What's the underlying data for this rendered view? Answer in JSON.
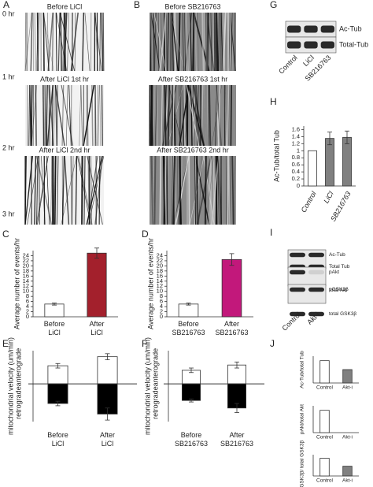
{
  "figure": {
    "kymographs": [
      {
        "panel": "A",
        "labels": [
          "Before LiCl",
          "After LiCl 1st hr",
          "After LiCl 2nd hr"
        ]
      },
      {
        "panel": "B",
        "labels": [
          "Before SB216763",
          "After SB216763 1st hr",
          "After SB216763 2nd hr"
        ]
      }
    ],
    "time_labels": [
      "0 hr",
      "1 hr",
      "2 hr",
      "3 hr"
    ],
    "blots": [
      {
        "panel": "G",
        "bands": [
          "Ac-Tub",
          "Total-Tub"
        ],
        "lanes": [
          "Control",
          "LiCl",
          "SB216763"
        ]
      },
      {
        "panel": "I",
        "bands": [
          "Ac-Tub",
          "Total Tub",
          "pAkt",
          "total Akt",
          "pGSK3β",
          "total GSK3β"
        ],
        "lanes": [
          "Control",
          "Akt-i"
        ]
      }
    ]
  },
  "chart_data": [
    {
      "type": "bar",
      "panel": "C",
      "ylabel": "Average number of events/hr",
      "categories": [
        [
          "Before",
          "LiCl"
        ],
        [
          "After",
          "LiCl"
        ]
      ],
      "values": [
        5,
        25
      ],
      "errors": [
        0.4,
        2
      ],
      "colors": [
        "#ffffff",
        "#a3202c"
      ],
      "ylim": [
        0,
        26
      ],
      "yticks": [
        0,
        2,
        4,
        6,
        8,
        10,
        12,
        14,
        16,
        18,
        20,
        22,
        24
      ]
    },
    {
      "type": "bar",
      "panel": "D",
      "ylabel": "Average number of events/hr",
      "categories": [
        [
          "Before",
          "SB216763"
        ],
        [
          "After",
          "SB216763"
        ]
      ],
      "values": [
        5,
        22.5
      ],
      "errors": [
        0.4,
        2.3
      ],
      "colors": [
        "#ffffff",
        "#c2187b"
      ],
      "ylim": [
        0,
        26
      ],
      "yticks": [
        0,
        2,
        4,
        6,
        8,
        10,
        12,
        14,
        16,
        18,
        20,
        22,
        24
      ]
    },
    {
      "type": "diverging",
      "panel": "E",
      "ylabel": "mitochondrial velocity (um/min)",
      "categories": [
        [
          "Before",
          "LiCl"
        ],
        [
          "After",
          "LiCl"
        ]
      ],
      "ylim": [
        -25,
        22
      ],
      "series": [
        {
          "name": "anterograde",
          "color": "#ffffff",
          "values": [
            12,
            18
          ],
          "errors": [
            1.5,
            2
          ]
        },
        {
          "name": "retrograde",
          "color": "#000000",
          "values": [
            -13,
            -20
          ],
          "errors": [
            1.5,
            4
          ]
        }
      ]
    },
    {
      "type": "diverging",
      "panel": "F",
      "ylabel": "mitochondrial velocity (um/min)",
      "categories": [
        [
          "Before",
          "SB216763"
        ],
        [
          "After",
          "SB216763"
        ]
      ],
      "ylim": [
        -25,
        22
      ],
      "series": [
        {
          "name": "anterograde",
          "color": "#ffffff",
          "values": [
            9,
            12.5
          ],
          "errors": [
            1.5,
            2
          ]
        },
        {
          "name": "retrograde",
          "color": "#000000",
          "values": [
            -11,
            -16
          ],
          "errors": [
            1,
            3
          ]
        }
      ]
    },
    {
      "type": "bar",
      "panel": "H",
      "ylabel": "Ac-Tub/total Tub",
      "categories": [
        "Control",
        "LiCl",
        "SB216763"
      ],
      "values": [
        1,
        1.35,
        1.38
      ],
      "errors": [
        0,
        0.18,
        0.18
      ],
      "colors": [
        "#ffffff",
        "#808080",
        "#808080"
      ],
      "ylim": [
        0,
        1.7
      ],
      "yticks": [
        0,
        0.2,
        0.4,
        0.6,
        0.8,
        1,
        1.2,
        1.4,
        1.6
      ]
    },
    {
      "type": "bar",
      "panel": "J",
      "ylabel": "Ac-Tub/total Tub",
      "categories": [
        "Control",
        "Akt-i"
      ],
      "values": [
        1,
        0.6
      ],
      "colors": [
        "#ffffff",
        "#808080"
      ],
      "ylim": [
        0,
        1.2
      ]
    },
    {
      "type": "bar",
      "ylabel": "pAkt/total Akt",
      "categories": [
        "Control",
        "Akt-i"
      ],
      "values": [
        1,
        0
      ],
      "colors": [
        "#ffffff",
        "#808080"
      ],
      "ylim": [
        0,
        1.2
      ]
    },
    {
      "type": "bar",
      "ylabel": "pGSK3β/ total GSK3β",
      "categories": [
        "Control",
        "Akt-i"
      ],
      "values": [
        1,
        0.55
      ],
      "colors": [
        "#ffffff",
        "#808080"
      ],
      "ylim": [
        0,
        1.2
      ]
    }
  ]
}
